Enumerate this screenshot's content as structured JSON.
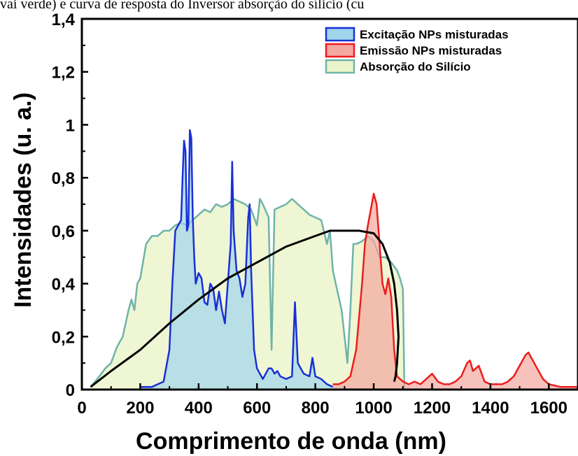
{
  "top_caption": "vai verde) e curva de resposta do Inversor absorção do sílicio (cu",
  "chart_data": {
    "type": "area",
    "xlabel": "Comprimento de onda (nm)",
    "ylabel": "Intensidades (u. a.)",
    "xlim": [
      0,
      1700
    ],
    "ylim": [
      0,
      1.4
    ],
    "xticks": [
      0,
      200,
      400,
      600,
      800,
      1000,
      1200,
      1400,
      1600
    ],
    "xtick_labels": [
      "0",
      "200",
      "400",
      "600",
      "800",
      "1000",
      "1200",
      "1400",
      "1600"
    ],
    "yticks": [
      0,
      0.2,
      0.4,
      0.6,
      0.8,
      1.0,
      1.2,
      1.4
    ],
    "ytick_labels": [
      "0",
      "0,2",
      "0,4",
      "0,6",
      "0,8",
      "1",
      "1,2",
      "1,4"
    ],
    "legend_position": "top-right",
    "grid": false,
    "series": [
      {
        "name": "Excitação NPs misturadas",
        "color": "#1a2fd6",
        "fill": "#9fd6ec",
        "x": [
          200,
          240,
          280,
          300,
          310,
          320,
          330,
          340,
          345,
          350,
          355,
          360,
          365,
          370,
          375,
          380,
          385,
          390,
          400,
          410,
          420,
          430,
          440,
          450,
          460,
          470,
          480,
          490,
          500,
          510,
          515,
          520,
          530,
          540,
          550,
          560,
          570,
          575,
          580,
          590,
          600,
          620,
          640,
          650,
          660,
          670,
          680,
          700,
          720,
          730,
          740,
          760,
          780,
          790,
          800,
          820,
          840,
          860
        ],
        "y": [
          0.01,
          0.01,
          0.03,
          0.15,
          0.4,
          0.6,
          0.62,
          0.64,
          0.8,
          0.94,
          0.9,
          0.6,
          0.62,
          0.98,
          0.95,
          0.65,
          0.5,
          0.4,
          0.44,
          0.42,
          0.33,
          0.32,
          0.4,
          0.38,
          0.3,
          0.37,
          0.3,
          0.25,
          0.4,
          0.55,
          0.86,
          0.6,
          0.45,
          0.42,
          0.35,
          0.4,
          0.65,
          0.7,
          0.45,
          0.15,
          0.08,
          0.04,
          0.08,
          0.08,
          0.06,
          0.07,
          0.05,
          0.04,
          0.05,
          0.33,
          0.1,
          0.06,
          0.05,
          0.12,
          0.05,
          0.04,
          0.02,
          0.01
        ]
      },
      {
        "name": "Emissão NPs misturadas",
        "color": "#ee1c1c",
        "fill": "#f4a8a0",
        "x": [
          860,
          880,
          900,
          920,
          940,
          960,
          970,
          980,
          990,
          1000,
          1010,
          1020,
          1030,
          1040,
          1050,
          1060,
          1070,
          1080,
          1100,
          1120,
          1140,
          1160,
          1180,
          1200,
          1220,
          1240,
          1260,
          1280,
          1300,
          1320,
          1330,
          1340,
          1350,
          1360,
          1380,
          1400,
          1420,
          1440,
          1460,
          1480,
          1500,
          1520,
          1530,
          1540,
          1560,
          1580,
          1600,
          1640,
          1680,
          1700
        ],
        "y": [
          0.02,
          0.02,
          0.03,
          0.05,
          0.15,
          0.4,
          0.55,
          0.62,
          0.68,
          0.74,
          0.7,
          0.55,
          0.4,
          0.36,
          0.42,
          0.35,
          0.15,
          0.05,
          0.03,
          0.02,
          0.03,
          0.02,
          0.04,
          0.06,
          0.03,
          0.02,
          0.02,
          0.03,
          0.05,
          0.1,
          0.11,
          0.07,
          0.08,
          0.09,
          0.03,
          0.02,
          0.02,
          0.02,
          0.03,
          0.05,
          0.09,
          0.13,
          0.14,
          0.12,
          0.08,
          0.04,
          0.02,
          0.01,
          0.01,
          0.01
        ]
      },
      {
        "name": "Absorção do Silício",
        "color": "#6fb3a8",
        "fill": "#ecf4cc",
        "x": [
          30,
          60,
          80,
          100,
          120,
          140,
          160,
          170,
          180,
          190,
          200,
          220,
          240,
          260,
          280,
          300,
          320,
          340,
          360,
          380,
          400,
          420,
          440,
          460,
          480,
          500,
          520,
          540,
          560,
          580,
          600,
          610,
          620,
          640,
          650,
          660,
          680,
          700,
          720,
          740,
          760,
          780,
          800,
          820,
          840,
          850,
          860,
          870,
          880,
          890,
          900,
          910,
          920,
          930,
          940,
          960,
          980,
          1000,
          1020,
          1040,
          1060,
          1080,
          1090,
          1100,
          1105
        ],
        "y": [
          0.01,
          0.05,
          0.08,
          0.1,
          0.16,
          0.2,
          0.3,
          0.34,
          0.3,
          0.4,
          0.42,
          0.55,
          0.58,
          0.58,
          0.6,
          0.6,
          0.62,
          0.63,
          0.62,
          0.64,
          0.66,
          0.68,
          0.67,
          0.7,
          0.69,
          0.7,
          0.72,
          0.71,
          0.7,
          0.68,
          0.62,
          0.72,
          0.7,
          0.65,
          0.15,
          0.68,
          0.69,
          0.7,
          0.72,
          0.7,
          0.68,
          0.66,
          0.65,
          0.64,
          0.55,
          0.6,
          0.45,
          0.4,
          0.35,
          0.3,
          0.2,
          0.1,
          0.3,
          0.55,
          0.55,
          0.56,
          0.58,
          0.56,
          0.5,
          0.5,
          0.48,
          0.45,
          0.42,
          0.38,
          0.0
        ]
      },
      {
        "name": "",
        "color": "#000000",
        "fill": "none",
        "x": [
          30,
          100,
          200,
          300,
          400,
          500,
          600,
          700,
          800,
          850,
          900,
          950,
          1000,
          1030,
          1055,
          1070,
          1080,
          1085,
          1080,
          1075,
          1070
        ],
        "y": [
          0.01,
          0.07,
          0.15,
          0.25,
          0.34,
          0.42,
          0.48,
          0.54,
          0.58,
          0.6,
          0.6,
          0.6,
          0.59,
          0.55,
          0.48,
          0.4,
          0.3,
          0.2,
          0.1,
          0.05,
          0.03
        ]
      }
    ]
  }
}
